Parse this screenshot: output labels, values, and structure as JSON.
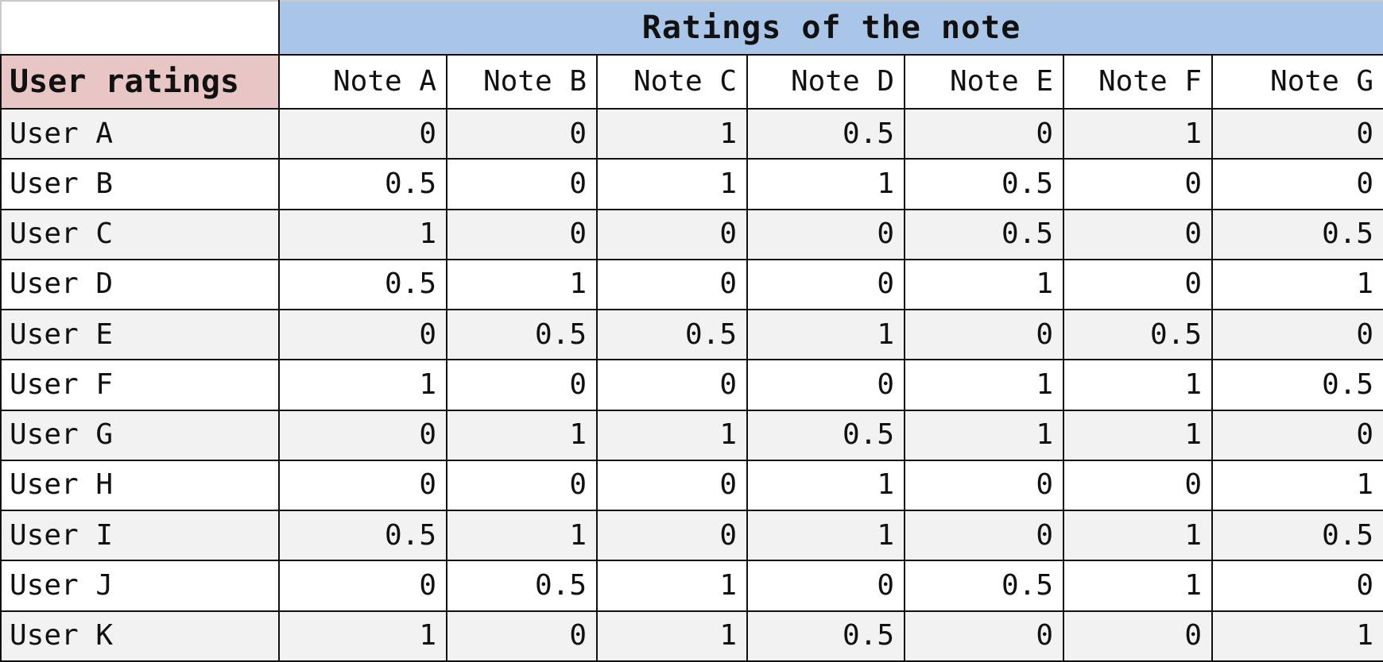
{
  "table": {
    "title": "Ratings of the note",
    "row_header_label": "User ratings",
    "columns": [
      "Note A",
      "Note B",
      "Note C",
      "Note D",
      "Note E",
      "Note F",
      "Note G"
    ],
    "rows": [
      {
        "label": "User A",
        "values": [
          "0",
          "0",
          "1",
          "0.5",
          "0",
          "1",
          "0"
        ]
      },
      {
        "label": "User B",
        "values": [
          "0.5",
          "0",
          "1",
          "1",
          "0.5",
          "0",
          "0"
        ]
      },
      {
        "label": "User C",
        "values": [
          "1",
          "0",
          "0",
          "0",
          "0.5",
          "0",
          "0.5"
        ]
      },
      {
        "label": "User D",
        "values": [
          "0.5",
          "1",
          "0",
          "0",
          "1",
          "0",
          "1"
        ]
      },
      {
        "label": "User E",
        "values": [
          "0",
          "0.5",
          "0.5",
          "1",
          "0",
          "0.5",
          "0"
        ]
      },
      {
        "label": "User F",
        "values": [
          "1",
          "0",
          "0",
          "0",
          "1",
          "1",
          "0.5"
        ]
      },
      {
        "label": "User G",
        "values": [
          "0",
          "1",
          "1",
          "0.5",
          "1",
          "1",
          "0"
        ]
      },
      {
        "label": "User H",
        "values": [
          "0",
          "0",
          "0",
          "1",
          "0",
          "0",
          "1"
        ]
      },
      {
        "label": "User I",
        "values": [
          "0.5",
          "1",
          "0",
          "1",
          "0",
          "1",
          "0.5"
        ]
      },
      {
        "label": "User J",
        "values": [
          "0",
          "0.5",
          "1",
          "0",
          "0.5",
          "1",
          "0"
        ]
      },
      {
        "label": "User K",
        "values": [
          "1",
          "0",
          "1",
          "0.5",
          "0",
          "0",
          "1"
        ]
      }
    ]
  },
  "colors": {
    "title_background": "#a9c6e8",
    "row_header_background": "#e8c6c6",
    "shaded_row_background": "#f2f2f2",
    "border": "#111111"
  }
}
